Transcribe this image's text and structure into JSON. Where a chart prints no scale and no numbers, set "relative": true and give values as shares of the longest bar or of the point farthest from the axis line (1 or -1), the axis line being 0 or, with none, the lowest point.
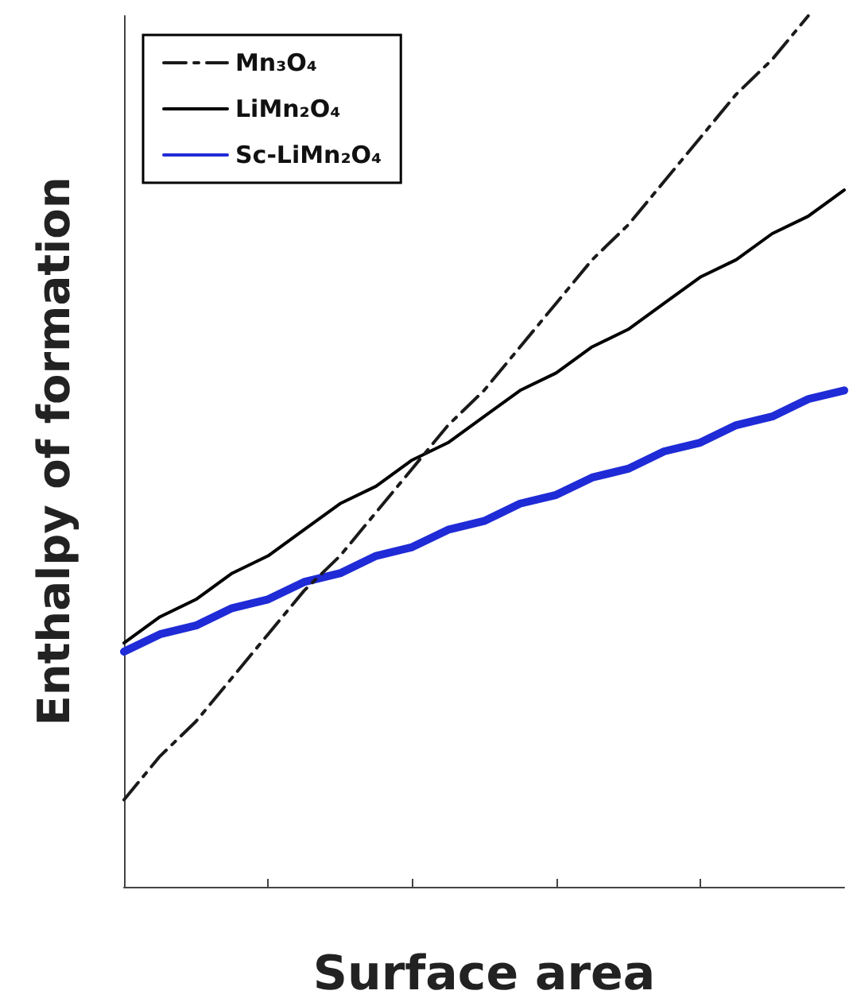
{
  "chart_data": {
    "type": "line",
    "relative": true,
    "xlabel": "Surface area",
    "ylabel": "Enthalpy of formation",
    "categories": [
      null,
      null,
      null,
      null,
      null,
      null,
      null,
      null,
      null,
      null,
      null,
      null,
      null,
      null,
      null,
      null,
      null,
      null,
      null,
      null,
      null
    ],
    "legend": "top left",
    "marker": "none",
    "series": [
      {
        "name": "Mn₃O₄",
        "color": "#1a1a1a",
        "line_style": "dashed",
        "values": [
          0.1,
          0.15,
          0.19,
          0.24,
          0.29,
          0.34,
          0.38,
          0.43,
          0.48,
          0.53,
          0.57,
          0.62,
          0.67,
          0.72,
          0.76,
          0.81,
          0.86,
          0.91,
          0.95,
          1.0,
          null
        ]
      },
      {
        "name": "LiMn₂O₄",
        "color": "#000000",
        "line_style": "solid",
        "values": [
          0.28,
          0.31,
          0.33,
          0.36,
          0.38,
          0.41,
          0.44,
          0.46,
          0.49,
          0.51,
          0.54,
          0.57,
          0.59,
          0.62,
          0.64,
          0.67,
          0.7,
          0.72,
          0.75,
          0.77,
          0.8
        ]
      },
      {
        "name": "Sc-LiMn₂O₄",
        "color": "#1f2bd6",
        "line_style": "solid",
        "values": [
          0.27,
          0.29,
          0.3,
          0.32,
          0.33,
          0.35,
          0.36,
          0.38,
          0.39,
          0.41,
          0.42,
          0.44,
          0.45,
          0.47,
          0.48,
          0.5,
          0.51,
          0.53,
          0.54,
          0.56,
          0.57
        ]
      }
    ]
  }
}
